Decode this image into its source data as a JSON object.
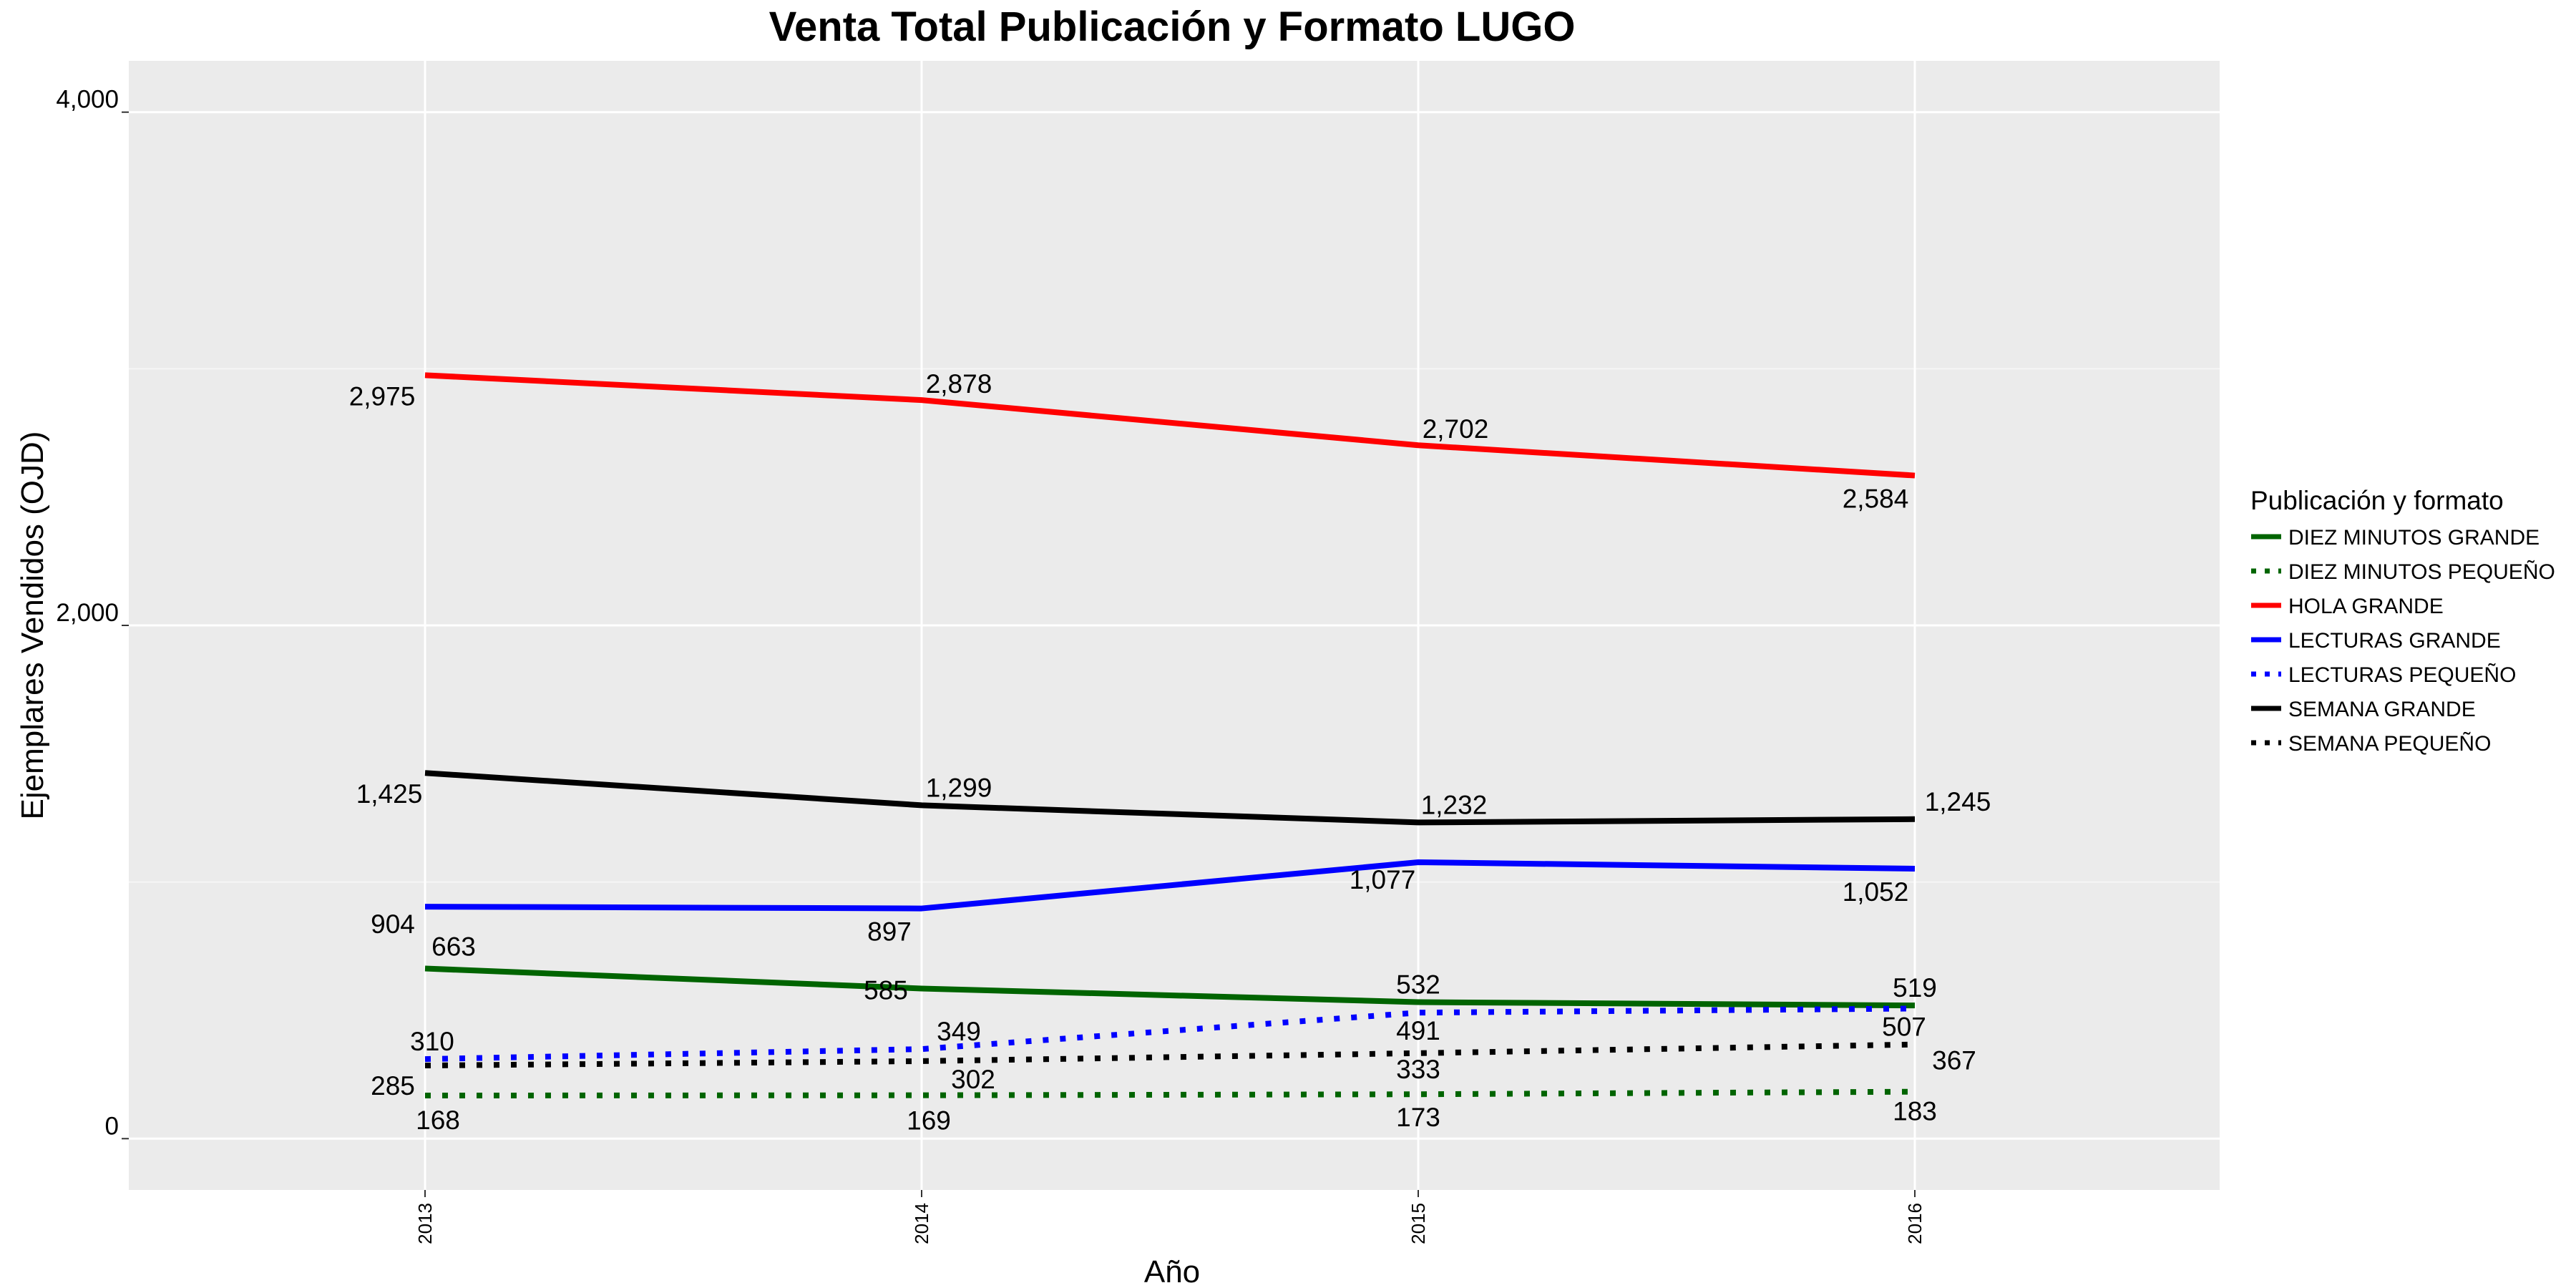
{
  "chart_data": {
    "type": "line",
    "title": "Venta Total Publicación y Formato  LUGO",
    "xlabel": "Año",
    "ylabel": "Ejemplares Vendidos (OJD)",
    "x": [
      "2013",
      "2014",
      "2015",
      "2016"
    ],
    "ylim": [
      -200,
      4200
    ],
    "yticks": [
      0,
      2000,
      4000
    ],
    "ytick_labels": [
      "0",
      "2,000",
      "4,000"
    ],
    "grid": true,
    "legend": {
      "title": "Publicación y formato",
      "position": "right"
    },
    "series": [
      {
        "name": "DIEZ MINUTOS GRANDE",
        "color": "#006400",
        "dash": "solid",
        "values": [
          663,
          585,
          532,
          519
        ],
        "labels": [
          "663",
          "585",
          "532",
          "519"
        ]
      },
      {
        "name": "DIEZ MINUTOS PEQUEÑO",
        "color": "#006400",
        "dash": "dotted",
        "values": [
          168,
          169,
          173,
          183
        ],
        "labels": [
          "168",
          "169",
          "173",
          "183"
        ]
      },
      {
        "name": "HOLA GRANDE",
        "color": "#ff0000",
        "dash": "solid",
        "values": [
          2975,
          2878,
          2702,
          2584
        ],
        "labels": [
          "2,975",
          "2,878",
          "2,702",
          "2,584"
        ]
      },
      {
        "name": "LECTURAS GRANDE",
        "color": "#0000ff",
        "dash": "solid",
        "values": [
          904,
          897,
          1077,
          1052
        ],
        "labels": [
          "904",
          "897",
          "1,077",
          "1,052"
        ]
      },
      {
        "name": "LECTURAS PEQUEÑO",
        "color": "#0000ff",
        "dash": "dotted",
        "values": [
          310,
          349,
          491,
          507
        ],
        "labels": [
          "310",
          "349",
          "491",
          "507"
        ]
      },
      {
        "name": "SEMANA GRANDE",
        "color": "#000000",
        "dash": "solid",
        "values": [
          1425,
          1299,
          1232,
          1245
        ],
        "labels": [
          "1,425",
          "1,299",
          "1,232",
          "1,245"
        ]
      },
      {
        "name": "SEMANA PEQUEÑO",
        "color": "#000000",
        "dash": "dotted",
        "values": [
          285,
          302,
          333,
          367
        ],
        "labels": [
          "285",
          "302",
          "333",
          "367"
        ]
      }
    ]
  }
}
